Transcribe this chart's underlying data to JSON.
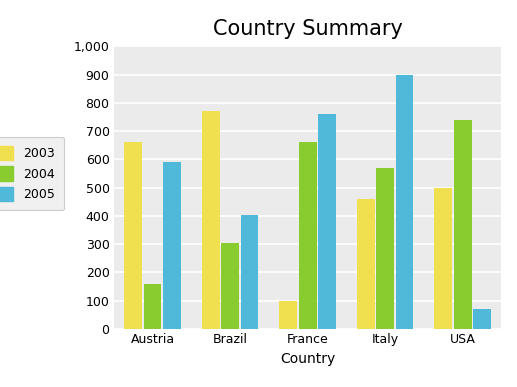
{
  "title": "Country Summary",
  "categories": [
    "Austria",
    "Brazil",
    "France",
    "Italy",
    "USA"
  ],
  "xlabel": "Country",
  "ylabel": "",
  "years": [
    "2003",
    "2004",
    "2005"
  ],
  "values": {
    "2003": [
      660,
      770,
      100,
      460,
      500
    ],
    "2004": [
      160,
      305,
      660,
      570,
      740
    ],
    "2005": [
      590,
      405,
      760,
      900,
      70
    ]
  },
  "colors": {
    "2003": "#f0e050",
    "2004": "#88cc30",
    "2005": "#50b8d8"
  },
  "ylim": [
    0,
    1000
  ],
  "yticks": [
    0,
    100,
    200,
    300,
    400,
    500,
    600,
    700,
    800,
    900,
    1000
  ],
  "ytick_labels": [
    "0",
    "100",
    "200",
    "300",
    "400",
    "500",
    "600",
    "700",
    "800",
    "900",
    "1,000"
  ],
  "bar_width": 0.25,
  "plot_background": "#ebebeb",
  "grid_color": "#ffffff",
  "legend_facecolor": "#f0f0f0",
  "title_fontsize": 15,
  "axis_fontsize": 10,
  "tick_fontsize": 9
}
